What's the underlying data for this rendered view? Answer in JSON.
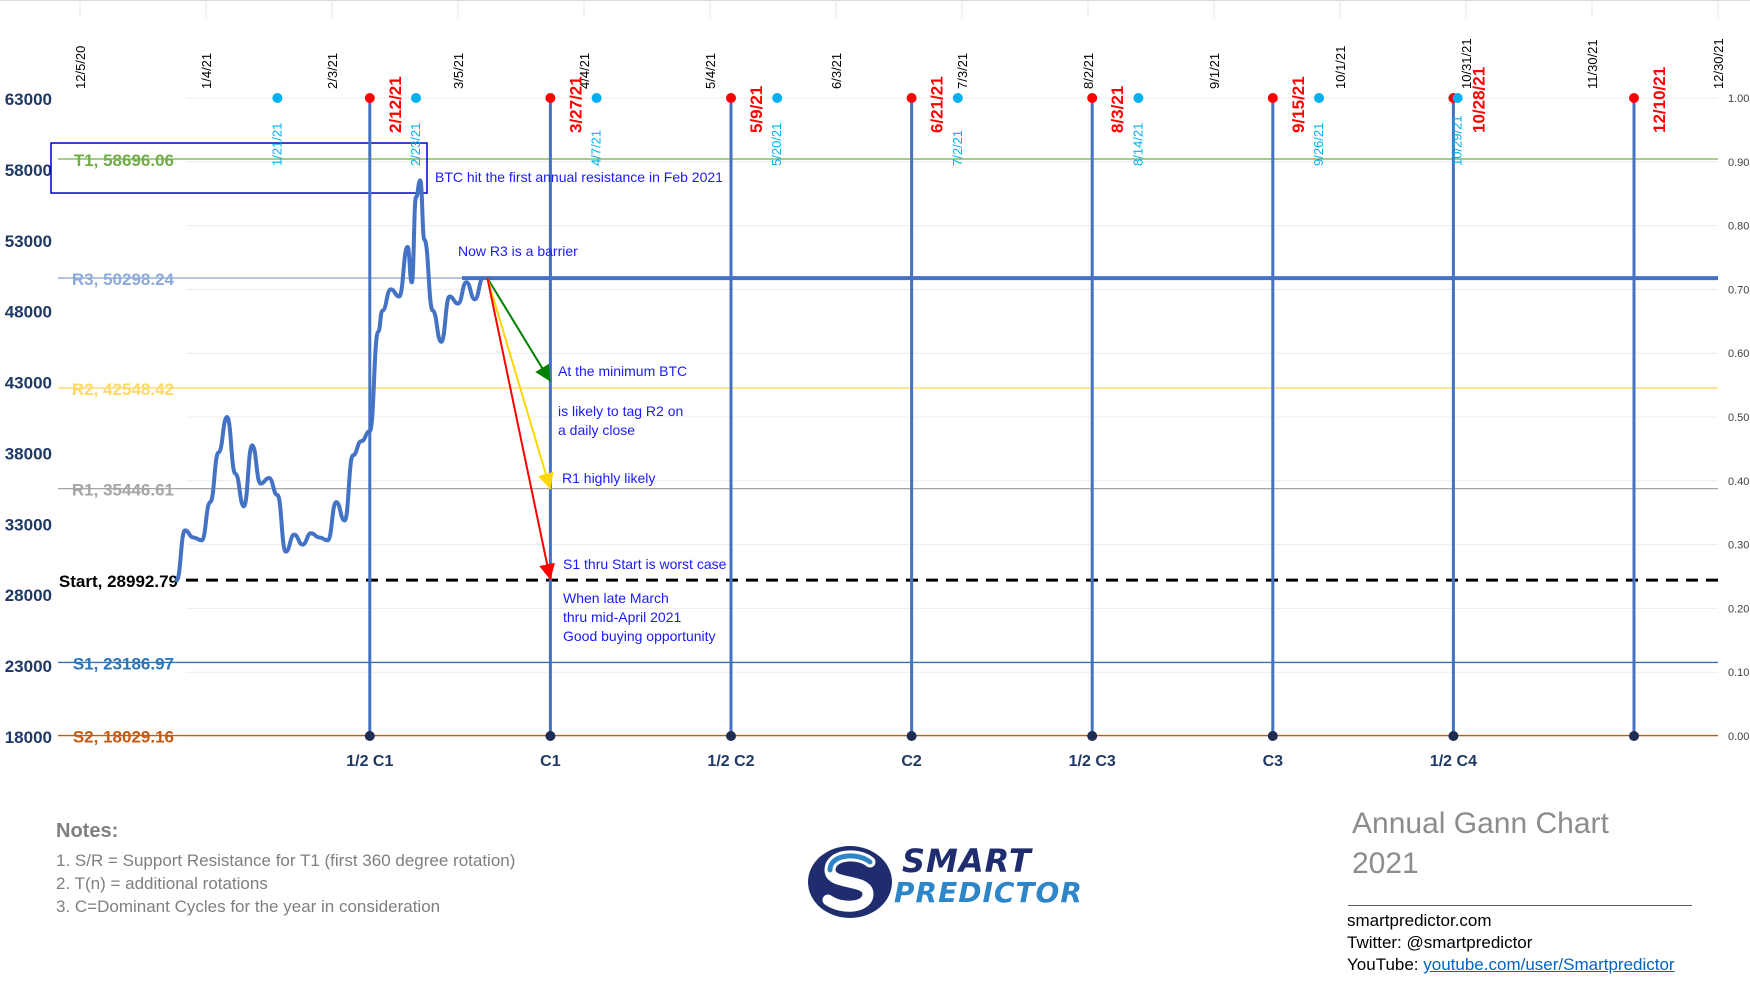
{
  "chart_data": {
    "type": "line",
    "title": "",
    "x_dates": [
      "12/5/20",
      "1/4/21",
      "2/3/21",
      "3/5/21",
      "4/4/21",
      "5/4/21",
      "6/3/21",
      "7/3/21",
      "8/2/21",
      "9/1/21",
      "10/1/21",
      "10/31/21",
      "11/30/21",
      "12/30/21"
    ],
    "y_ticks": [
      "18000",
      "23000",
      "28000",
      "33000",
      "38000",
      "43000",
      "48000",
      "53000",
      "58000",
      "63000"
    ],
    "ylim": [
      18000,
      63000
    ],
    "y2_ticks": [
      "0.00",
      "0.10",
      "0.20",
      "0.30",
      "0.40",
      "0.50",
      "0.60",
      "0.70",
      "0.80",
      "0.90",
      "1.00"
    ],
    "y2lim": [
      0,
      1
    ],
    "levels": [
      {
        "label": "T1, 58696.06",
        "value": 58696.06,
        "color": "#70ad47"
      },
      {
        "label": "R3, 50298.24",
        "value": 50298.24,
        "color": "#8eaadb"
      },
      {
        "label": "R2, 42548.42",
        "value": 42548.42,
        "color": "#ffd966"
      },
      {
        "label": "R1, 35446.61",
        "value": 35446.61,
        "color": "#a5a5a5"
      },
      {
        "label": "Start, 28992.79",
        "value": 28992.79,
        "color": "#000000",
        "dashed": true
      },
      {
        "label": "S1, 23186.97",
        "value": 23186.97,
        "color": "#2e75b6"
      },
      {
        "label": "S2, 18029.16",
        "value": 18029.16,
        "color": "#c55a11"
      }
    ],
    "cycles": [
      {
        "label": "1/2 C1",
        "date": "2/12/21"
      },
      {
        "label": "C1",
        "date": "3/27/21"
      },
      {
        "label": "1/2 C2",
        "date": "5/9/21"
      },
      {
        "label": "C2",
        "date": "6/21/21"
      },
      {
        "label": "1/2 C3",
        "date": "8/3/21"
      },
      {
        "label": "C3",
        "date": "9/15/21"
      },
      {
        "label": "1/2 C4",
        "date": "10/28/21"
      },
      {
        "label": "",
        "date": "12/10/21"
      }
    ],
    "cyan_dates": [
      "1/21/21",
      "2/23/21",
      "4/7/21",
      "5/20/21",
      "7/2/21",
      "8/14/21",
      "9/26/21",
      "10/29/21"
    ],
    "series": [
      {
        "name": "",
        "color": "#4472c4",
        "points": [
          [
            "12/28/20",
            28990
          ],
          [
            "12/30/20",
            32500
          ],
          [
            "1/1/21",
            32000
          ],
          [
            "1/3/21",
            31800
          ],
          [
            "1/5/21",
            34500
          ],
          [
            "1/7/21",
            38000
          ],
          [
            "1/9/21",
            40500
          ],
          [
            "1/11/21",
            36500
          ],
          [
            "1/13/21",
            34200
          ],
          [
            "1/15/21",
            38500
          ],
          [
            "1/17/21",
            35800
          ],
          [
            "1/19/21",
            36200
          ],
          [
            "1/21/21",
            35000
          ],
          [
            "1/23/21",
            31000
          ],
          [
            "1/25/21",
            32200
          ],
          [
            "1/27/21",
            31500
          ],
          [
            "1/29/21",
            32300
          ],
          [
            "1/31/21",
            32000
          ],
          [
            "2/2/21",
            31800
          ],
          [
            "2/4/21",
            34500
          ],
          [
            "2/6/21",
            33200
          ],
          [
            "2/8/21",
            37800
          ],
          [
            "2/10/21",
            38800
          ],
          [
            "2/12/21",
            39500
          ],
          [
            "2/14/21",
            46500
          ],
          [
            "2/15/21",
            48000
          ],
          [
            "2/17/21",
            49500
          ],
          [
            "2/19/21",
            49000
          ],
          [
            "2/21/21",
            52500
          ],
          [
            "2/22/21",
            50000
          ],
          [
            "2/23/21",
            56000
          ],
          [
            "2/24/21",
            57200
          ],
          [
            "2/25/21",
            53000
          ],
          [
            "2/27/21",
            48000
          ],
          [
            "3/1/21",
            45800
          ],
          [
            "3/3/21",
            49000
          ],
          [
            "3/5/21",
            48500
          ],
          [
            "3/7/21",
            50000
          ],
          [
            "3/9/21",
            48800
          ],
          [
            "3/11/21",
            50300
          ]
        ]
      }
    ],
    "projections": [
      {
        "color": "#008000",
        "from": [
          "3/12/21",
          50298
        ],
        "to": [
          "3/27/21",
          43000
        ]
      },
      {
        "color": "#ffd700",
        "from": [
          "3/12/21",
          50298
        ],
        "to": [
          "3/27/21",
          35400
        ]
      },
      {
        "color": "#ff0000",
        "from": [
          "3/12/21",
          50298
        ],
        "to": [
          "3/27/21",
          29000
        ]
      }
    ],
    "annotations": [
      "BTC hit the first annual resistance in Feb 2021",
      "Now R3 is a barrier",
      "At the minimum BTC",
      "is likely to tag R2 on",
      "a daily close",
      "R1 highly likely",
      "S1 thru Start is worst case",
      "When late March",
      "thru mid-April 2021",
      "Good buying opportunity"
    ]
  },
  "notes": {
    "title": "Notes:",
    "lines": [
      "1. S/R = Support Resistance for T1 (first 360 degree rotation)",
      "2. T(n) = additional rotations",
      "3. C=Dominant Cycles for the year in consideration"
    ]
  },
  "brand": {
    "word1": "SMART",
    "word2": "PREDICTOR"
  },
  "gann_title": {
    "line1": "Annual Gann Chart",
    "line2": "2021"
  },
  "contact": {
    "site": "smartpredictor.com",
    "twitter": "Twitter: @smartpredictor",
    "youtube_label": "YouTube: ",
    "youtube_link": "youtube.com/user/Smartpredictor"
  }
}
